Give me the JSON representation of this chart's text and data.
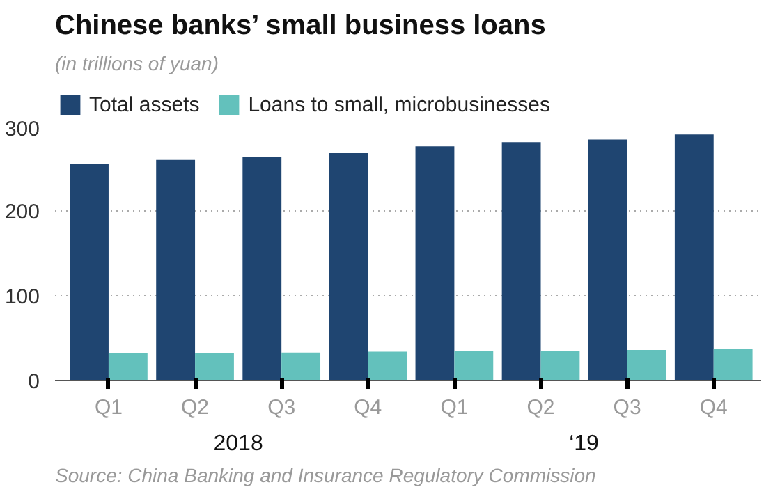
{
  "chart_data": {
    "type": "bar",
    "title": "Chinese banks’ small business loans",
    "subtitle": "(in trillions of yuan)",
    "categories": [
      "Q1",
      "Q2",
      "Q3",
      "Q4",
      "Q1",
      "Q2",
      "Q3",
      "Q4"
    ],
    "series": [
      {
        "name": "Total assets",
        "color": "#1f4571",
        "values": [
          255,
          260,
          264,
          268,
          276,
          281,
          284,
          290
        ]
      },
      {
        "name": "Loans to small, microbusinesses",
        "color": "#63c1bc",
        "values": [
          32,
          32,
          33,
          34,
          35,
          35,
          36,
          37
        ]
      }
    ],
    "ylim": [
      0,
      300
    ],
    "yticks": [
      0,
      100,
      200,
      300
    ],
    "grid": "y",
    "legend": "top",
    "annotations": [
      "2018",
      "‘19",
      "Source: China Banking and Insurance Regulatory Commission"
    ]
  }
}
